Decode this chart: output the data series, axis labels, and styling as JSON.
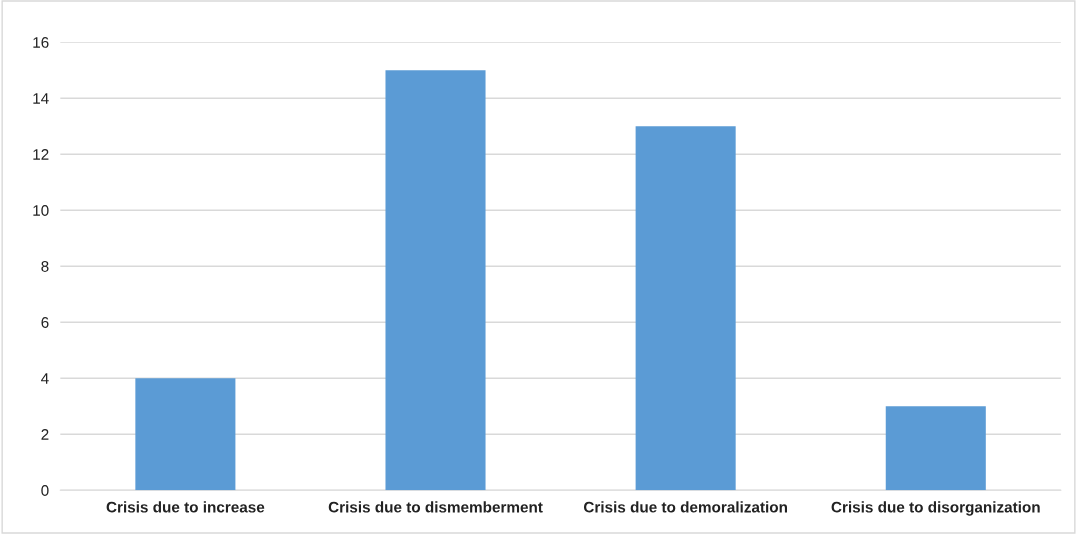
{
  "chart_data": {
    "type": "bar",
    "categories": [
      "Crisis due to increase",
      "Crisis due to dismemberment",
      "Crisis due to demoralization",
      "Crisis due to disorganization"
    ],
    "values": [
      4,
      15,
      13,
      3
    ],
    "color": "#5b9bd5",
    "ylim": [
      0,
      16
    ],
    "yticks": [
      0,
      2,
      4,
      6,
      8,
      10,
      12,
      14,
      16
    ],
    "grid": "y"
  }
}
